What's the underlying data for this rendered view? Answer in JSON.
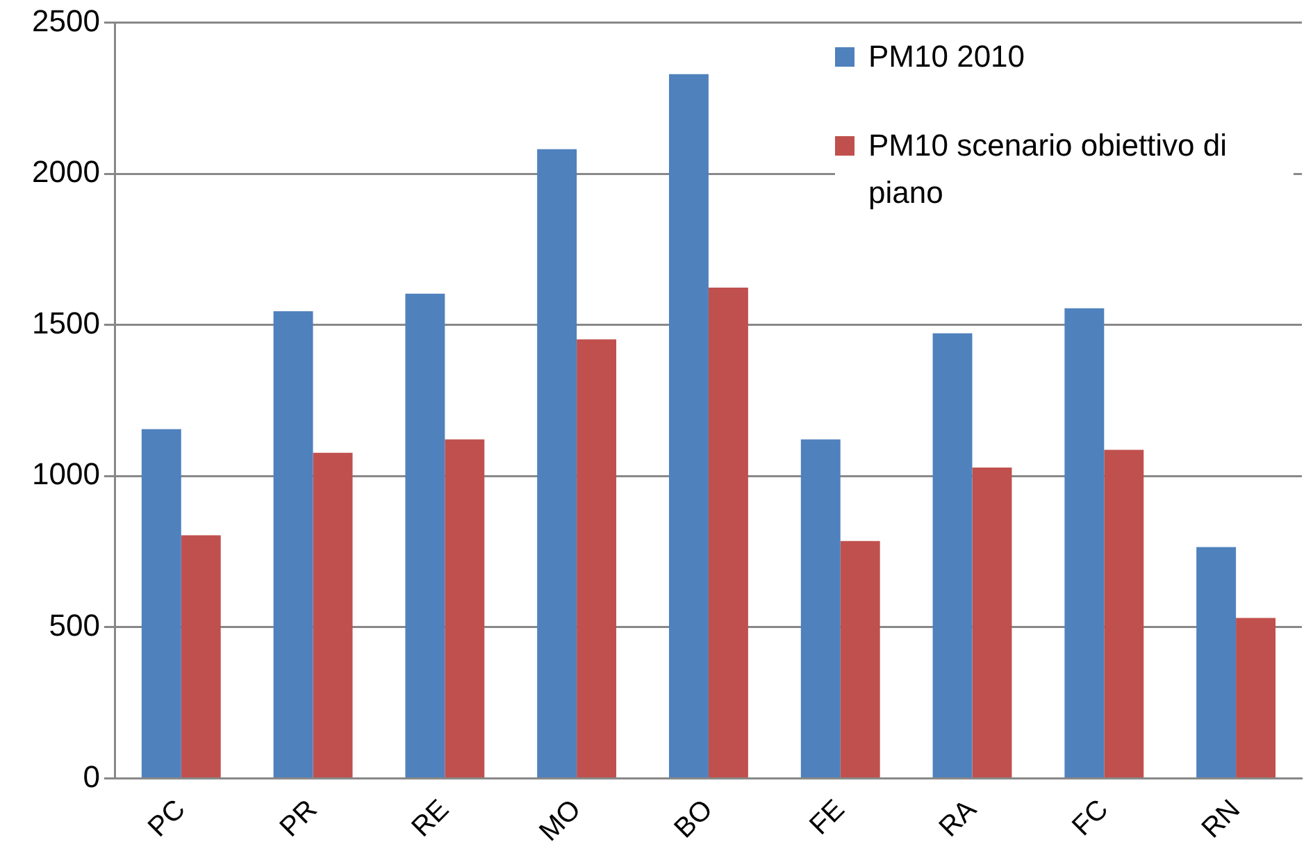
{
  "chart_data": {
    "type": "bar",
    "categories": [
      "PC",
      "PR",
      "RE",
      "MO",
      "BO",
      "FE",
      "RA",
      "FC",
      "RN"
    ],
    "series": [
      {
        "name": "PM10 2010",
        "color": "#4f81bd",
        "values": [
          1155,
          1545,
          1603,
          2081,
          2329,
          1121,
          1472,
          1555,
          765
        ]
      },
      {
        "name": "PM10 scenario obiettivo di piano",
        "color": "#c0504d",
        "values": [
          804,
          1077,
          1121,
          1452,
          1623,
          785,
          1028,
          1087,
          531
        ]
      }
    ],
    "ylim": [
      0,
      2500
    ],
    "yticks": [
      0,
      500,
      1000,
      1500,
      2000,
      2500
    ],
    "grid": "y",
    "legend": "top right"
  }
}
